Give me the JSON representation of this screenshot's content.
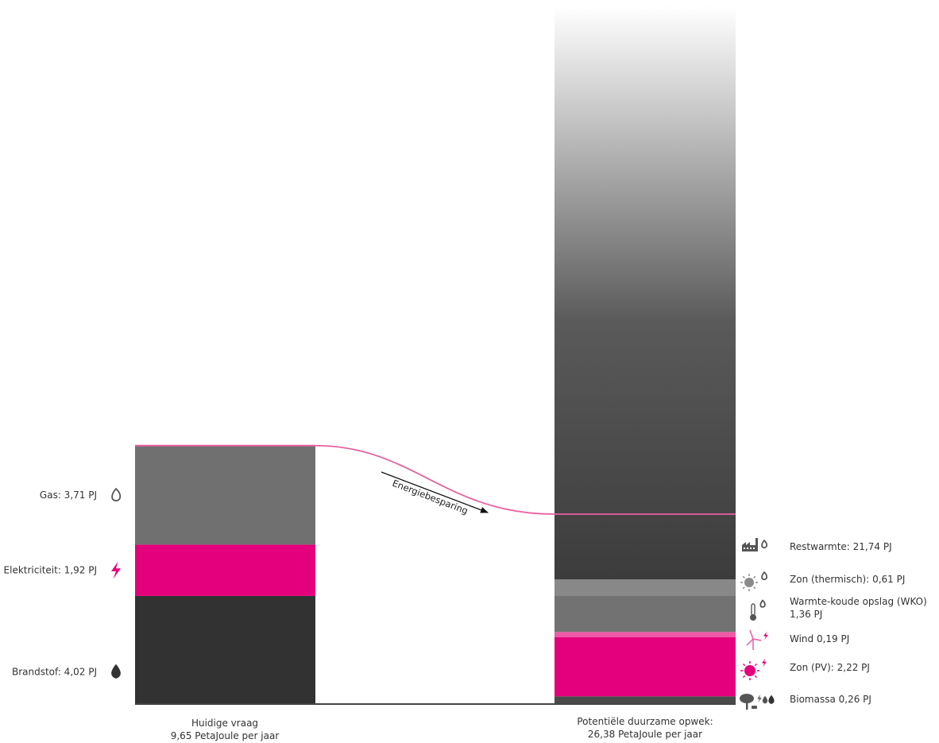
{
  "chart_data": {
    "type": "bar",
    "unit": "PJ",
    "colors": {
      "gas": "#707070",
      "elektriciteit": "#e4007c",
      "brandstof": "#323232",
      "restwarmte": "#3c3c3c",
      "zon_thermisch": "#888888",
      "wko": "#727272",
      "wind": "#ef5aa6",
      "zon_pv": "#e4007c",
      "biomassa": "#4a4a4a",
      "baseline": "#444444",
      "level_line": "#e9609f"
    },
    "bars": [
      {
        "id": "huidige-vraag",
        "caption_line1": "Huidige vraag",
        "caption_line2": "9,65 PetaJoule per jaar",
        "total": 9.65,
        "segments": [
          {
            "key": "brandstof",
            "value": 4.02,
            "label": "Brandstof: 4,02 PJ",
            "icon": "drop-icon",
            "color": "#323232"
          },
          {
            "key": "elektriciteit",
            "value": 1.92,
            "label": "Elektriciteit: 1,92 PJ",
            "icon": "lightning-icon",
            "color": "#e4007c"
          },
          {
            "key": "gas",
            "value": 3.71,
            "label": "Gas: 3,71 PJ",
            "icon": "flame-icon",
            "color": "#707070"
          }
        ]
      },
      {
        "id": "potentiele-opwek",
        "caption_line1": "Potentiële duurzame opwek:",
        "caption_line2": "26,38 PetaJoule per jaar",
        "total": 26.38,
        "segments": [
          {
            "key": "biomassa",
            "value": 0.26,
            "label": "Biomassa 0,26 PJ",
            "icon": "tree-icon",
            "color": "#4a4a4a"
          },
          {
            "key": "zon_pv",
            "value": 2.22,
            "label": "Zon (PV): 2,22 PJ",
            "icon": "sun-pv-icon",
            "color": "#e4007c"
          },
          {
            "key": "wind",
            "value": 0.19,
            "label": "Wind 0,19 PJ",
            "icon": "wind-turbine-icon",
            "color": "#ef5aa6"
          },
          {
            "key": "wko",
            "value": 1.36,
            "label": "Warmte-koude opslag  (WKO)",
            "label2": "1,36 PJ",
            "icon": "thermometer-icon",
            "color": "#727272"
          },
          {
            "key": "zon_thermisch",
            "value": 0.61,
            "label": "Zon (thermisch): 0,61 PJ",
            "icon": "sun-thermal-icon",
            "color": "#888888"
          },
          {
            "key": "restwarmte",
            "value": 21.74,
            "label": "Restwarmte: 21,74 PJ",
            "icon": "factory-icon",
            "color": "#3c3c3c"
          }
        ]
      }
    ],
    "annotation": "Energiebesparing"
  }
}
